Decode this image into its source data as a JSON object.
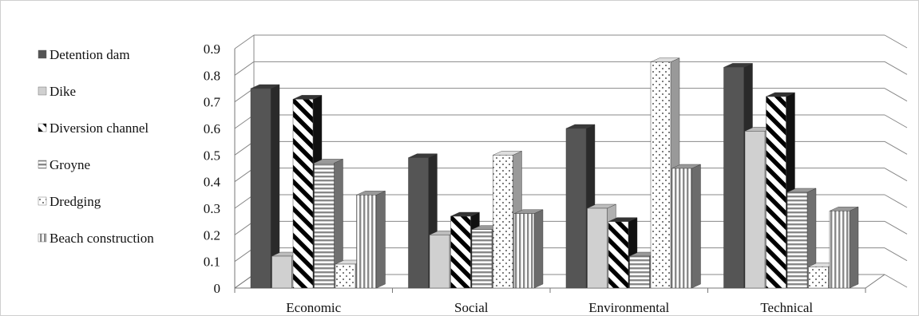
{
  "chart_data": {
    "type": "bar",
    "categories": [
      "Economic",
      "Social",
      "Environmental",
      "Technical"
    ],
    "series": [
      {
        "name": "Detention dam",
        "values": [
          0.75,
          0.49,
          0.6,
          0.83
        ]
      },
      {
        "name": "Dike",
        "values": [
          0.12,
          0.2,
          0.3,
          0.59
        ]
      },
      {
        "name": "Diversion channel",
        "values": [
          0.71,
          0.27,
          0.25,
          0.72
        ]
      },
      {
        "name": "Groyne",
        "values": [
          0.47,
          0.22,
          0.12,
          0.36
        ]
      },
      {
        "name": "Dredging",
        "values": [
          0.09,
          0.5,
          0.85,
          0.08
        ]
      },
      {
        "name": "Beach construction",
        "values": [
          0.35,
          0.28,
          0.45,
          0.29
        ]
      }
    ],
    "ylim": [
      0,
      0.9
    ],
    "yticks": [
      "0",
      "0.1",
      "0.2",
      "0.3",
      "0.4",
      "0.5",
      "0.6",
      "0.7",
      "0.8",
      "0.9"
    ],
    "grid": true,
    "legend_position": "left",
    "title": "",
    "xlabel": "",
    "ylabel": ""
  }
}
